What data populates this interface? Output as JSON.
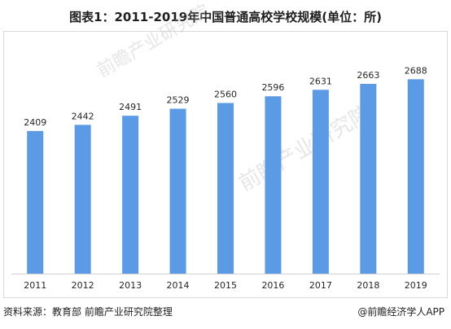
{
  "chart_data": {
    "type": "bar",
    "title": "图表1：2011-2019年中国普通高校学校规模(单位：所)",
    "categories": [
      "2011",
      "2012",
      "2013",
      "2014",
      "2015",
      "2016",
      "2017",
      "2018",
      "2019"
    ],
    "values": [
      2409,
      2442,
      2491,
      2529,
      2560,
      2596,
      2631,
      2663,
      2688
    ],
    "xlabel": "",
    "ylabel": "",
    "ylim": [
      1640,
      2720
    ],
    "bar_color": "#5b9be6",
    "grid": false,
    "legend": "none"
  },
  "footer": {
    "source": "资料来源：教育部 前瞻产业研究院整理",
    "credit": "@前瞻经济学人APP"
  },
  "watermark": {
    "brand": "前瞻产业研究院"
  }
}
